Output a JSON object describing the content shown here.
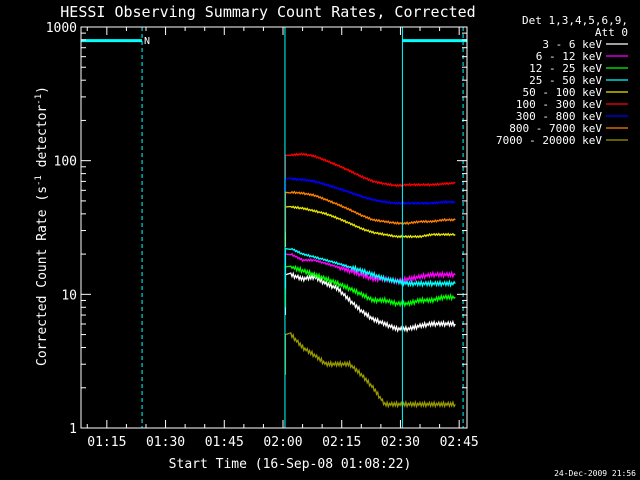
{
  "chart_data": {
    "type": "line",
    "title": "HESSI Observing Summary Count Rates, Corrected",
    "xlabel": "Start Time (16-Sep-08 01:08:22)",
    "ylabel": "Corrected Count Rate (s⁻¹ detector⁻¹)",
    "ylabel_main": "Corrected Count Rate (s",
    "ylabel_sup1": "-1",
    "ylabel_mid": " detector",
    "ylabel_sup2": "-1",
    "ylabel_end": ")",
    "y_scale": "log",
    "xlim_minutes": [
      68.4,
      167
    ],
    "ylim": [
      1,
      1000
    ],
    "x_ticks": [
      {
        "value": 75,
        "label": "01:15"
      },
      {
        "value": 90,
        "label": "01:30"
      },
      {
        "value": 105,
        "label": "01:45"
      },
      {
        "value": 120,
        "label": "02:00"
      },
      {
        "value": 135,
        "label": "02:15"
      },
      {
        "value": 150,
        "label": "02:30"
      },
      {
        "value": 165,
        "label": "02:45"
      }
    ],
    "y_ticks": [
      {
        "value": 1,
        "label": "1"
      },
      {
        "value": 10,
        "label": "10"
      },
      {
        "value": 100,
        "label": "100"
      },
      {
        "value": 1000,
        "label": "1000"
      }
    ],
    "legend_header": [
      "Det 1,3,4,5,6,9,",
      "Att 0"
    ],
    "legend_position": "right",
    "series": [
      {
        "name": "3 - 6 keV",
        "color": "#ffffff",
        "x": [
          122,
          125,
          128,
          131,
          134,
          137,
          140,
          143,
          146,
          149,
          152,
          155,
          158,
          161,
          164
        ],
        "values": [
          14,
          13,
          13.5,
          12,
          11,
          9,
          7.5,
          6.5,
          6,
          5.5,
          5.5,
          5.8,
          6,
          6,
          6
        ]
      },
      {
        "name": "6 - 12 keV",
        "color": "#ff00ff",
        "x": [
          122,
          125,
          128,
          131,
          134,
          137,
          140,
          143,
          146,
          149,
          152,
          155,
          158,
          161,
          164
        ],
        "values": [
          20,
          18,
          18,
          17,
          16,
          15,
          14,
          13,
          13,
          12.5,
          13,
          13.5,
          14,
          14,
          14
        ]
      },
      {
        "name": "12 - 25 keV",
        "color": "#00ff00",
        "x": [
          122,
          125,
          128,
          131,
          134,
          137,
          140,
          143,
          146,
          149,
          152,
          155,
          158,
          161,
          164
        ],
        "values": [
          16,
          15,
          14,
          13,
          12,
          11,
          10,
          9,
          9,
          8.5,
          8.5,
          9,
          9,
          9.5,
          9.5
        ]
      },
      {
        "name": "25 - 50 keV",
        "color": "#00ffff",
        "x": [
          122,
          125,
          128,
          131,
          134,
          137,
          140,
          143,
          146,
          149,
          152,
          155,
          158,
          161,
          164
        ],
        "values": [
          22,
          20,
          19,
          18,
          17,
          16,
          15,
          14,
          13,
          12.5,
          12,
          12,
          12,
          12,
          12
        ]
      },
      {
        "name": "50 - 100 keV",
        "color": "#e6e600",
        "x": [
          122,
          125,
          128,
          131,
          134,
          137,
          140,
          143,
          146,
          149,
          152,
          155,
          158,
          161,
          164
        ],
        "values": [
          45,
          44,
          42,
          40,
          37,
          34,
          31,
          29,
          28,
          27,
          27,
          27,
          28,
          28,
          28
        ]
      },
      {
        "name": "100 - 300 keV",
        "color": "#ff0000",
        "x": [
          122,
          125,
          128,
          131,
          134,
          137,
          140,
          143,
          146,
          149,
          152,
          155,
          158,
          161,
          164
        ],
        "values": [
          110,
          112,
          108,
          100,
          92,
          84,
          76,
          70,
          67,
          65,
          66,
          66,
          66,
          67,
          68
        ]
      },
      {
        "name": "300 - 800 keV",
        "color": "#0000ff",
        "x": [
          122,
          125,
          128,
          131,
          134,
          137,
          140,
          143,
          146,
          149,
          152,
          155,
          158,
          161,
          164
        ],
        "values": [
          73,
          72,
          70,
          66,
          62,
          58,
          54,
          51,
          49,
          48,
          48,
          48,
          48,
          49,
          49
        ]
      },
      {
        "name": "800 - 7000 keV",
        "color": "#ff8000",
        "x": [
          122,
          125,
          128,
          131,
          134,
          137,
          140,
          143,
          146,
          149,
          152,
          155,
          158,
          161,
          164
        ],
        "values": [
          58,
          57,
          55,
          51,
          47,
          43,
          39,
          36,
          35,
          34,
          34,
          35,
          35,
          36,
          36
        ]
      },
      {
        "name": "7000 - 20000 keV",
        "color": "#999900",
        "x": [
          122,
          125,
          128,
          131,
          134,
          137,
          140,
          143,
          146,
          149,
          152,
          155,
          158,
          161,
          164
        ],
        "values": [
          5,
          4,
          3.5,
          3,
          3,
          3,
          2.5,
          2,
          1.5,
          1.5,
          1.5,
          1.5,
          1.5,
          1.5,
          1.5
        ]
      }
    ],
    "annotations": [
      {
        "type": "segment",
        "color": "#00ffff",
        "x_from": 68.4,
        "x_to": 84,
        "value": 790
      },
      {
        "type": "segment",
        "color": "#00ffff",
        "x_from": 150.5,
        "x_to": 167,
        "value": 790
      },
      {
        "type": "vline",
        "style": "dashed",
        "color": "#00ffff",
        "x": 84
      },
      {
        "type": "vline",
        "style": "dashed",
        "color": "#00ffff",
        "x": 166
      },
      {
        "type": "vline",
        "style": "solid",
        "color": "#00ffff",
        "x": 120.5
      },
      {
        "type": "vline",
        "style": "solid",
        "color": "#00ffff",
        "x": 150.5
      },
      {
        "type": "text",
        "label": "N",
        "color": "#00ffff",
        "x": 84.5,
        "value": 800
      }
    ],
    "grid": false
  },
  "footer": {
    "timestamp": "24-Dec-2009 21:56"
  }
}
